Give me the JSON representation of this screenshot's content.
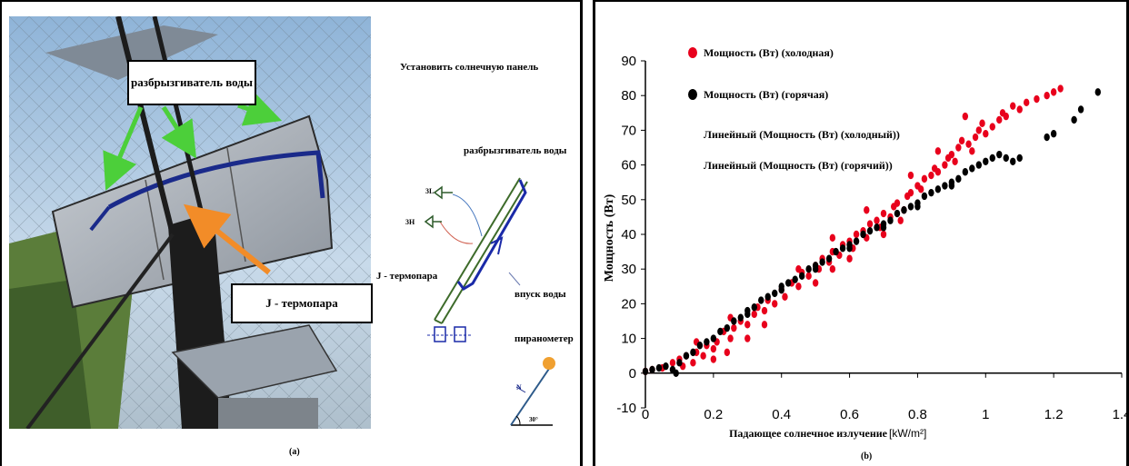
{
  "panel_a": {
    "callouts": {
      "sprinkler": "разбрызгиватель воды",
      "thermocouple": "J - термопара"
    },
    "diagram": {
      "install": "Установить солнечную панель",
      "sprinkler": "разбрызгиватель воды",
      "thermocouple": "J - термопара",
      "water_inlet": "впуск воды",
      "pyranometer": "пиранометер",
      "tag_1": "3L",
      "tag_2": "3H",
      "north": "N",
      "angle": "30°"
    },
    "caption": "(a)"
  },
  "panel_b": {
    "caption": "(b)"
  },
  "colors": {
    "cold": "#e8001c",
    "hot": "#000000",
    "arrow_green": "#4ccf3a",
    "arrow_orange": "#f28c28"
  },
  "chart_data": {
    "type": "scatter",
    "title": "",
    "xlabel": "Падающее солнечное излучение",
    "xlabel_unit": "[kW/m²]",
    "ylabel": "Мощность (Вт)",
    "xlim": [
      0,
      1.4
    ],
    "ylim": [
      -10,
      90
    ],
    "xticks": [
      "0",
      "0.2",
      "0.4",
      "0.6",
      "0.8",
      "1",
      "1.2",
      "1.4"
    ],
    "yticks": [
      "-10",
      "0",
      "10",
      "20",
      "30",
      "40",
      "50",
      "60",
      "70",
      "80",
      "90"
    ],
    "grid": false,
    "legend": [
      {
        "label": "Мощность (Вт) (холодная)",
        "marker": "dot",
        "color": "#e8001c"
      },
      {
        "label": "Мощность (Вт) (горячая)",
        "marker": "dot",
        "color": "#000000"
      },
      {
        "label": "Линейный (Мощность (Вт) (холодный))",
        "marker": "none"
      },
      {
        "label": "Линейный (Мощность (Вт) (горячий))",
        "marker": "none"
      }
    ],
    "series": [
      {
        "name": "Мощность (Вт) (холодная)",
        "color": "#e8001c",
        "points": [
          [
            0.0,
            0.5
          ],
          [
            0.02,
            1
          ],
          [
            0.05,
            1.5
          ],
          [
            0.08,
            3
          ],
          [
            0.1,
            4
          ],
          [
            0.11,
            2
          ],
          [
            0.12,
            5
          ],
          [
            0.14,
            3
          ],
          [
            0.15,
            6
          ],
          [
            0.17,
            5
          ],
          [
            0.18,
            8
          ],
          [
            0.2,
            7
          ],
          [
            0.21,
            9
          ],
          [
            0.23,
            12
          ],
          [
            0.25,
            10
          ],
          [
            0.26,
            13
          ],
          [
            0.28,
            15
          ],
          [
            0.3,
            14
          ],
          [
            0.32,
            17
          ],
          [
            0.33,
            19
          ],
          [
            0.35,
            18
          ],
          [
            0.36,
            21
          ],
          [
            0.38,
            20
          ],
          [
            0.4,
            24
          ],
          [
            0.41,
            22
          ],
          [
            0.43,
            26
          ],
          [
            0.45,
            25
          ],
          [
            0.46,
            29
          ],
          [
            0.48,
            28
          ],
          [
            0.5,
            31
          ],
          [
            0.51,
            30
          ],
          [
            0.52,
            33
          ],
          [
            0.54,
            32
          ],
          [
            0.55,
            35
          ],
          [
            0.57,
            34
          ],
          [
            0.58,
            37
          ],
          [
            0.6,
            38
          ],
          [
            0.61,
            36
          ],
          [
            0.62,
            40
          ],
          [
            0.64,
            41
          ],
          [
            0.65,
            39
          ],
          [
            0.66,
            43
          ],
          [
            0.68,
            44
          ],
          [
            0.69,
            42
          ],
          [
            0.7,
            46
          ],
          [
            0.72,
            45
          ],
          [
            0.73,
            48
          ],
          [
            0.74,
            49
          ],
          [
            0.76,
            47
          ],
          [
            0.77,
            51
          ],
          [
            0.78,
            52
          ],
          [
            0.8,
            54
          ],
          [
            0.81,
            53
          ],
          [
            0.82,
            56
          ],
          [
            0.84,
            57
          ],
          [
            0.85,
            59
          ],
          [
            0.86,
            58
          ],
          [
            0.88,
            60
          ],
          [
            0.89,
            62
          ],
          [
            0.9,
            63
          ],
          [
            0.91,
            61
          ],
          [
            0.92,
            65
          ],
          [
            0.93,
            67
          ],
          [
            0.95,
            66
          ],
          [
            0.96,
            64
          ],
          [
            0.97,
            68
          ],
          [
            0.98,
            70
          ],
          [
            0.99,
            72
          ],
          [
            1.0,
            69
          ],
          [
            1.02,
            71
          ],
          [
            1.04,
            73
          ],
          [
            1.05,
            75
          ],
          [
            1.06,
            74
          ],
          [
            1.08,
            77
          ],
          [
            1.1,
            76
          ],
          [
            1.12,
            78
          ],
          [
            1.15,
            79
          ],
          [
            1.18,
            80
          ],
          [
            1.2,
            81
          ],
          [
            1.22,
            82
          ],
          [
            0.2,
            4
          ],
          [
            0.24,
            6
          ],
          [
            0.3,
            10
          ],
          [
            0.35,
            14
          ],
          [
            0.5,
            26
          ],
          [
            0.55,
            30
          ],
          [
            0.6,
            33
          ],
          [
            0.7,
            40
          ],
          [
            0.75,
            44
          ],
          [
            0.94,
            74
          ],
          [
            0.86,
            64
          ],
          [
            0.78,
            57
          ],
          [
            0.15,
            9
          ],
          [
            0.25,
            16
          ],
          [
            0.45,
            30
          ],
          [
            0.55,
            39
          ],
          [
            0.65,
            47
          ]
        ]
      },
      {
        "name": "Мощность (Вт) (горячая)",
        "color": "#000000",
        "points": [
          [
            0.0,
            0.5
          ],
          [
            0.02,
            1
          ],
          [
            0.04,
            1.5
          ],
          [
            0.06,
            2
          ],
          [
            0.08,
            1
          ],
          [
            0.09,
            0
          ],
          [
            0.1,
            3
          ],
          [
            0.12,
            5
          ],
          [
            0.14,
            6
          ],
          [
            0.16,
            8
          ],
          [
            0.18,
            9
          ],
          [
            0.2,
            10
          ],
          [
            0.22,
            12
          ],
          [
            0.24,
            13
          ],
          [
            0.26,
            15
          ],
          [
            0.28,
            16
          ],
          [
            0.3,
            18
          ],
          [
            0.32,
            19
          ],
          [
            0.34,
            21
          ],
          [
            0.36,
            22
          ],
          [
            0.38,
            23
          ],
          [
            0.4,
            25
          ],
          [
            0.42,
            26
          ],
          [
            0.44,
            27
          ],
          [
            0.46,
            28
          ],
          [
            0.48,
            30
          ],
          [
            0.5,
            31
          ],
          [
            0.52,
            32
          ],
          [
            0.54,
            33
          ],
          [
            0.56,
            35
          ],
          [
            0.58,
            36
          ],
          [
            0.6,
            37
          ],
          [
            0.62,
            38
          ],
          [
            0.64,
            40
          ],
          [
            0.66,
            41
          ],
          [
            0.68,
            42
          ],
          [
            0.7,
            43
          ],
          [
            0.72,
            44
          ],
          [
            0.74,
            46
          ],
          [
            0.76,
            47
          ],
          [
            0.78,
            48
          ],
          [
            0.8,
            49
          ],
          [
            0.82,
            51
          ],
          [
            0.84,
            52
          ],
          [
            0.86,
            53
          ],
          [
            0.88,
            54
          ],
          [
            0.9,
            55
          ],
          [
            0.92,
            56
          ],
          [
            0.94,
            58
          ],
          [
            0.96,
            59
          ],
          [
            0.98,
            60
          ],
          [
            1.0,
            61
          ],
          [
            1.02,
            62
          ],
          [
            1.04,
            63
          ],
          [
            1.06,
            62
          ],
          [
            1.08,
            61
          ],
          [
            1.1,
            62
          ],
          [
            1.18,
            68
          ],
          [
            1.2,
            69
          ],
          [
            1.26,
            73
          ],
          [
            1.28,
            76
          ],
          [
            1.33,
            81
          ],
          [
            0.3,
            17
          ],
          [
            0.4,
            24
          ],
          [
            0.5,
            30
          ],
          [
            0.6,
            36
          ],
          [
            0.7,
            42
          ],
          [
            0.8,
            48
          ],
          [
            0.9,
            54
          ]
        ]
      }
    ]
  }
}
